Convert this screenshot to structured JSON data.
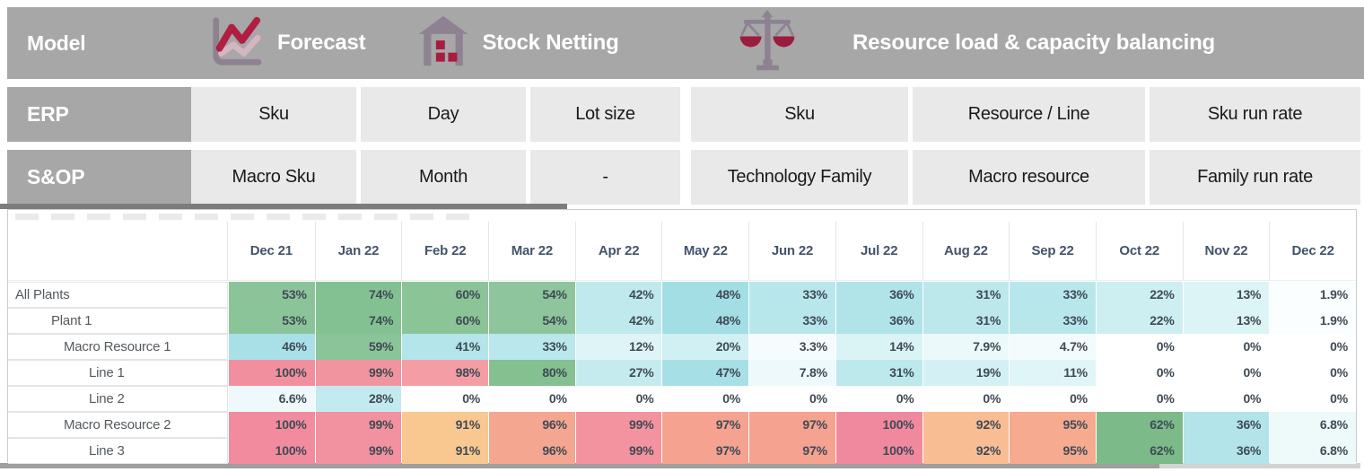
{
  "model_row": {
    "row_label": "Model",
    "items": [
      {
        "icon": "line-chart-icon",
        "label": "Forecast"
      },
      {
        "icon": "warehouse-icon",
        "label": "Stock Netting"
      },
      {
        "icon": "balance-scale-icon",
        "label": "Resource load & capacity balancing"
      }
    ]
  },
  "erp_row": {
    "row_label": "ERP",
    "cells": [
      "Sku",
      "Day",
      "Lot size",
      "Sku",
      "Resource / Line",
      "Sku run rate"
    ]
  },
  "sop_row": {
    "row_label": "S&OP",
    "cells": [
      "Macro Sku",
      "Month",
      "-",
      "Technology Family",
      "Macro resource",
      "Family run rate"
    ]
  },
  "colors": {
    "header_gray": "#a7a7a7",
    "light_cell_gray": "#e9e9e9",
    "accent_crimson": "#b01f42",
    "icon_mauve": "#8e8292",
    "month_header_text": "#44546a",
    "value_text": "#3f4a55",
    "top_bar": "#7c7c7c",
    "bottom_bar": "#9e9e9e"
  },
  "chart_data": {
    "type": "heatmap",
    "title": "Resource load by plant / resource / line",
    "columns": [
      "Dec 21",
      "Jan 22",
      "Feb 22",
      "Mar 22",
      "Apr 22",
      "May 22",
      "Jun 22",
      "Jul 22",
      "Aug 22",
      "Sep 22",
      "Oct 22",
      "Nov 22",
      "Dec 22"
    ],
    "rows": [
      {
        "label": "All Plants",
        "indent": 0,
        "values": [
          "53%",
          "74%",
          "60%",
          "54%",
          "42%",
          "48%",
          "33%",
          "36%",
          "31%",
          "33%",
          "22%",
          "13%",
          "1.9%"
        ],
        "colors": [
          "#8cc49a",
          "#83c193",
          "#8ac497",
          "#8ec59c",
          "#bfe9ec",
          "#a3dee5",
          "#b8e7eb",
          "#b1e4e9",
          "#bce8ec",
          "#b8e7eb",
          "#cdeff2",
          "#ddf4f6",
          "#fbfeff"
        ]
      },
      {
        "label": "Plant 1",
        "indent": 1,
        "values": [
          "53%",
          "74%",
          "60%",
          "54%",
          "42%",
          "48%",
          "33%",
          "36%",
          "31%",
          "33%",
          "22%",
          "13%",
          "1.9%"
        ],
        "colors": [
          "#8cc49a",
          "#83c193",
          "#8ac497",
          "#8ec59c",
          "#bfe9ec",
          "#a3dee5",
          "#b8e7eb",
          "#b1e4e9",
          "#bce8ec",
          "#b8e7eb",
          "#cdeff2",
          "#ddf4f6",
          "#fbfeff"
        ]
      },
      {
        "label": "Macro Resource 1",
        "indent": 2,
        "values": [
          "46%",
          "59%",
          "41%",
          "33%",
          "12%",
          "20%",
          "3.3%",
          "14%",
          "7.9%",
          "4.7%",
          "0%",
          "0%",
          "0%"
        ],
        "colors": [
          "#a9e0e7",
          "#8bc498",
          "#b3e5ea",
          "#b9e7eb",
          "#def4f6",
          "#d0f0f3",
          "#f6fcfd",
          "#daf3f5",
          "#ecf9fa",
          "#f3fbfc",
          "#ffffff",
          "#ffffff",
          "#ffffff"
        ]
      },
      {
        "label": "Line 1",
        "indent": 3,
        "values": [
          "100%",
          "99%",
          "98%",
          "80%",
          "27%",
          "47%",
          "7.8%",
          "31%",
          "19%",
          "11%",
          "0%",
          "0%",
          "0%"
        ],
        "colors": [
          "#f28f9e",
          "#f2949f",
          "#f49da4",
          "#84c090",
          "#c5ebef",
          "#a7dfe6",
          "#edf9fa",
          "#bde8ec",
          "#d3f1f4",
          "#e0f5f7",
          "#ffffff",
          "#ffffff",
          "#ffffff"
        ]
      },
      {
        "label": "Line 2",
        "indent": 3,
        "values": [
          "6.6%",
          "28%",
          "0%",
          "0%",
          "0%",
          "0%",
          "0%",
          "0%",
          "0%",
          "0%",
          "0%",
          "0%",
          "0%"
        ],
        "colors": [
          "#eff9fb",
          "#c3eaee",
          "#ffffff",
          "#ffffff",
          "#ffffff",
          "#ffffff",
          "#ffffff",
          "#ffffff",
          "#ffffff",
          "#ffffff",
          "#ffffff",
          "#ffffff",
          "#ffffff"
        ]
      },
      {
        "label": "Macro Resource 2",
        "indent": 2,
        "values": [
          "100%",
          "99%",
          "91%",
          "96%",
          "99%",
          "97%",
          "97%",
          "100%",
          "92%",
          "95%",
          "62%",
          "36%",
          "6.8%"
        ],
        "colors": [
          "#f28b9e",
          "#f2919f",
          "#f8c890",
          "#f5a690",
          "#f2939f",
          "#f5a290",
          "#f5a290",
          "#f1899e",
          "#f8bd92",
          "#f6aa90",
          "#7cba89",
          "#b2e4e9",
          "#eef9fa"
        ]
      },
      {
        "label": "Line 3",
        "indent": 3,
        "values": [
          "100%",
          "99%",
          "91%",
          "96%",
          "99%",
          "97%",
          "97%",
          "100%",
          "92%",
          "95%",
          "62%",
          "36%",
          "6.8%"
        ],
        "colors": [
          "#f28b9e",
          "#f2919f",
          "#f8c890",
          "#f5a690",
          "#f2939f",
          "#f5a290",
          "#f5a290",
          "#f1899e",
          "#f8bd92",
          "#f6aa90",
          "#7cba89",
          "#b2e4e9",
          "#eef9fa"
        ]
      }
    ]
  }
}
